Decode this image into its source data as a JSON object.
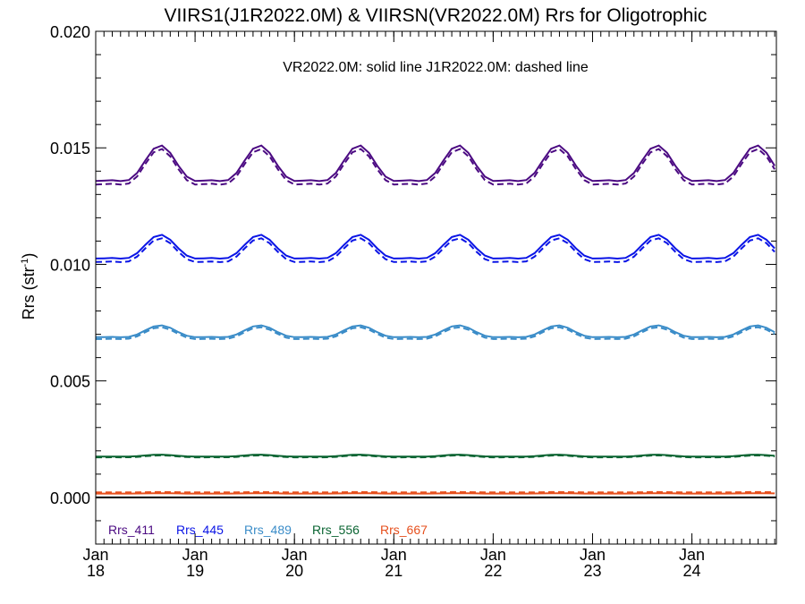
{
  "chart_data": {
    "type": "line",
    "title": "VIIRS1(J1R2022.0M) & VIIRSN(VR2022.0M)  Rrs for Oligotrophic",
    "annotation": "VR2022.0M: solid line   J1R2022.0M: dashed line",
    "ylabel_main": "Rrs (str",
    "ylabel_sup": "-1",
    "ylabel_end": ")",
    "ylim": [
      -0.002,
      0.02
    ],
    "y_ticks": [
      "0.000",
      "0.005",
      "0.010",
      "0.015",
      "0.020"
    ],
    "xlim": [
      2018.0,
      2024.85
    ],
    "x_ticks": [
      {
        "month": "Jan",
        "year": "18",
        "x": 2018
      },
      {
        "month": "Jan",
        "year": "19",
        "x": 2019
      },
      {
        "month": "Jan",
        "year": "20",
        "x": 2020
      },
      {
        "month": "Jan",
        "year": "21",
        "x": 2021
      },
      {
        "month": "Jan",
        "year": "22",
        "x": 2022
      },
      {
        "month": "Jan",
        "year": "23",
        "x": 2023
      },
      {
        "month": "Jan",
        "year": "24",
        "x": 2024
      }
    ],
    "zero_line": 0.0,
    "series": [
      {
        "name": "Rrs_411",
        "color": "#4b0a82",
        "mean": 0.0141,
        "amp": 0.0009,
        "dashed_offset": -0.00015
      },
      {
        "name": "Rrs_445",
        "color": "#0a14e6",
        "mean": 0.0106,
        "amp": 0.0006,
        "dashed_offset": -0.00015
      },
      {
        "name": "Rrs_489",
        "color": "#3a8cc8",
        "mean": 0.00705,
        "amp": 0.0003,
        "dashed_offset": -8e-05
      },
      {
        "name": "Rrs_556",
        "color": "#0a6432",
        "mean": 0.00178,
        "amp": 5e-05,
        "dashed_offset": -3e-05
      },
      {
        "name": "Rrs_667",
        "color": "#e6501e",
        "mean": 0.00017,
        "amp": 1e-05,
        "dashed_offset": 5e-05
      }
    ]
  }
}
